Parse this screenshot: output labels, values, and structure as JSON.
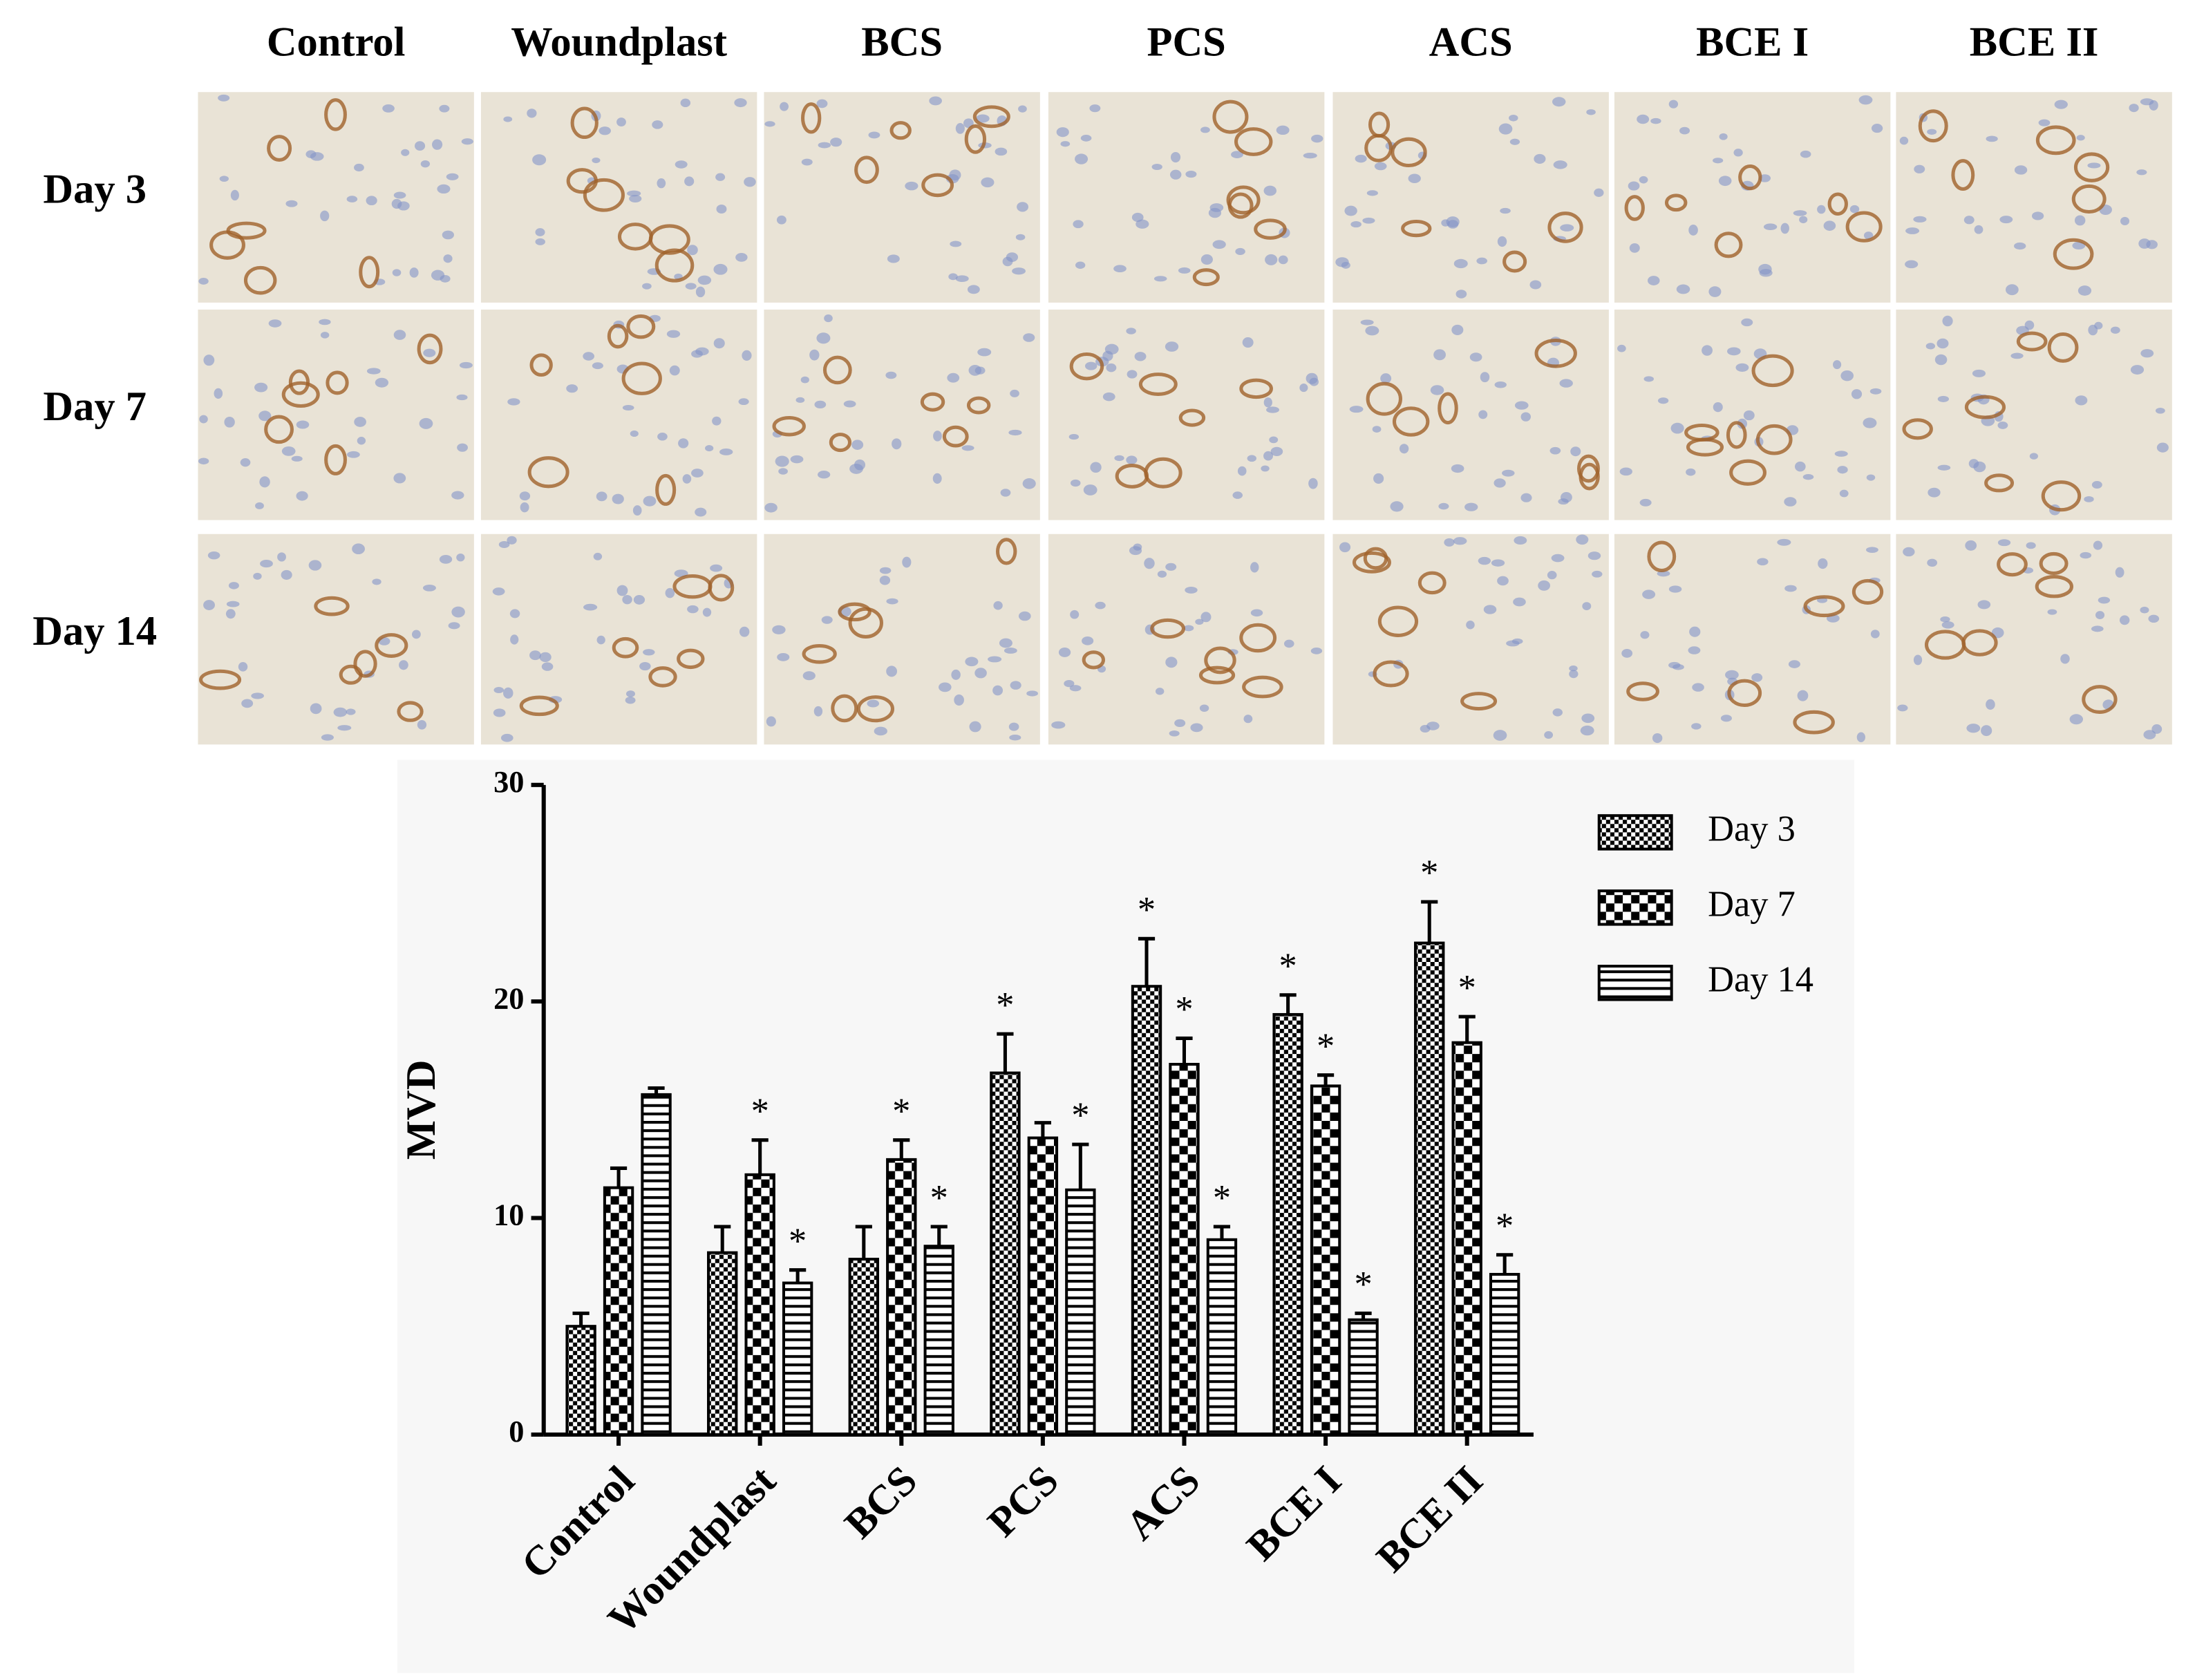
{
  "micrographs": {
    "columns": [
      "Control",
      "Woundplast",
      "BCS",
      "PCS",
      "ACS",
      "BCE I",
      "BCE II"
    ],
    "rows": [
      "Day 3",
      "Day 7",
      "Day 14"
    ]
  },
  "chart_data": {
    "type": "bar",
    "ylabel": "MVD",
    "categories": [
      "Control",
      "Woundplast",
      "BCS",
      "PCS",
      "ACS",
      "BCE I",
      "BCE II"
    ],
    "ylim": [
      0,
      30
    ],
    "yticks": [
      0,
      10,
      20,
      30
    ],
    "legend": "upper right",
    "series": [
      {
        "name": "Day 3",
        "color": "#000000",
        "values": [
          5.0,
          8.4,
          8.1,
          16.7,
          20.7,
          19.4,
          22.7
        ],
        "errors": [
          0.6,
          1.2,
          1.5,
          1.8,
          2.2,
          0.9,
          1.9
        ],
        "annotations": [
          null,
          null,
          null,
          "*",
          "*",
          "*",
          "*"
        ]
      },
      {
        "name": "Day 7",
        "color": "#000000",
        "values": [
          11.4,
          12.0,
          12.7,
          13.7,
          17.1,
          16.1,
          18.1
        ],
        "errors": [
          0.9,
          1.6,
          0.9,
          0.7,
          1.2,
          0.5,
          1.2
        ],
        "annotations": [
          null,
          "*",
          "*",
          null,
          "*",
          "*",
          "*"
        ]
      },
      {
        "name": "Day 14",
        "color": "#000000",
        "values": [
          15.7,
          7.0,
          8.7,
          11.3,
          9.0,
          5.3,
          7.4
        ],
        "errors": [
          0.3,
          0.6,
          0.9,
          2.1,
          0.6,
          0.3,
          0.9
        ],
        "annotations": [
          null,
          "*",
          "*",
          "*",
          "*",
          "*",
          "*"
        ]
      }
    ]
  }
}
